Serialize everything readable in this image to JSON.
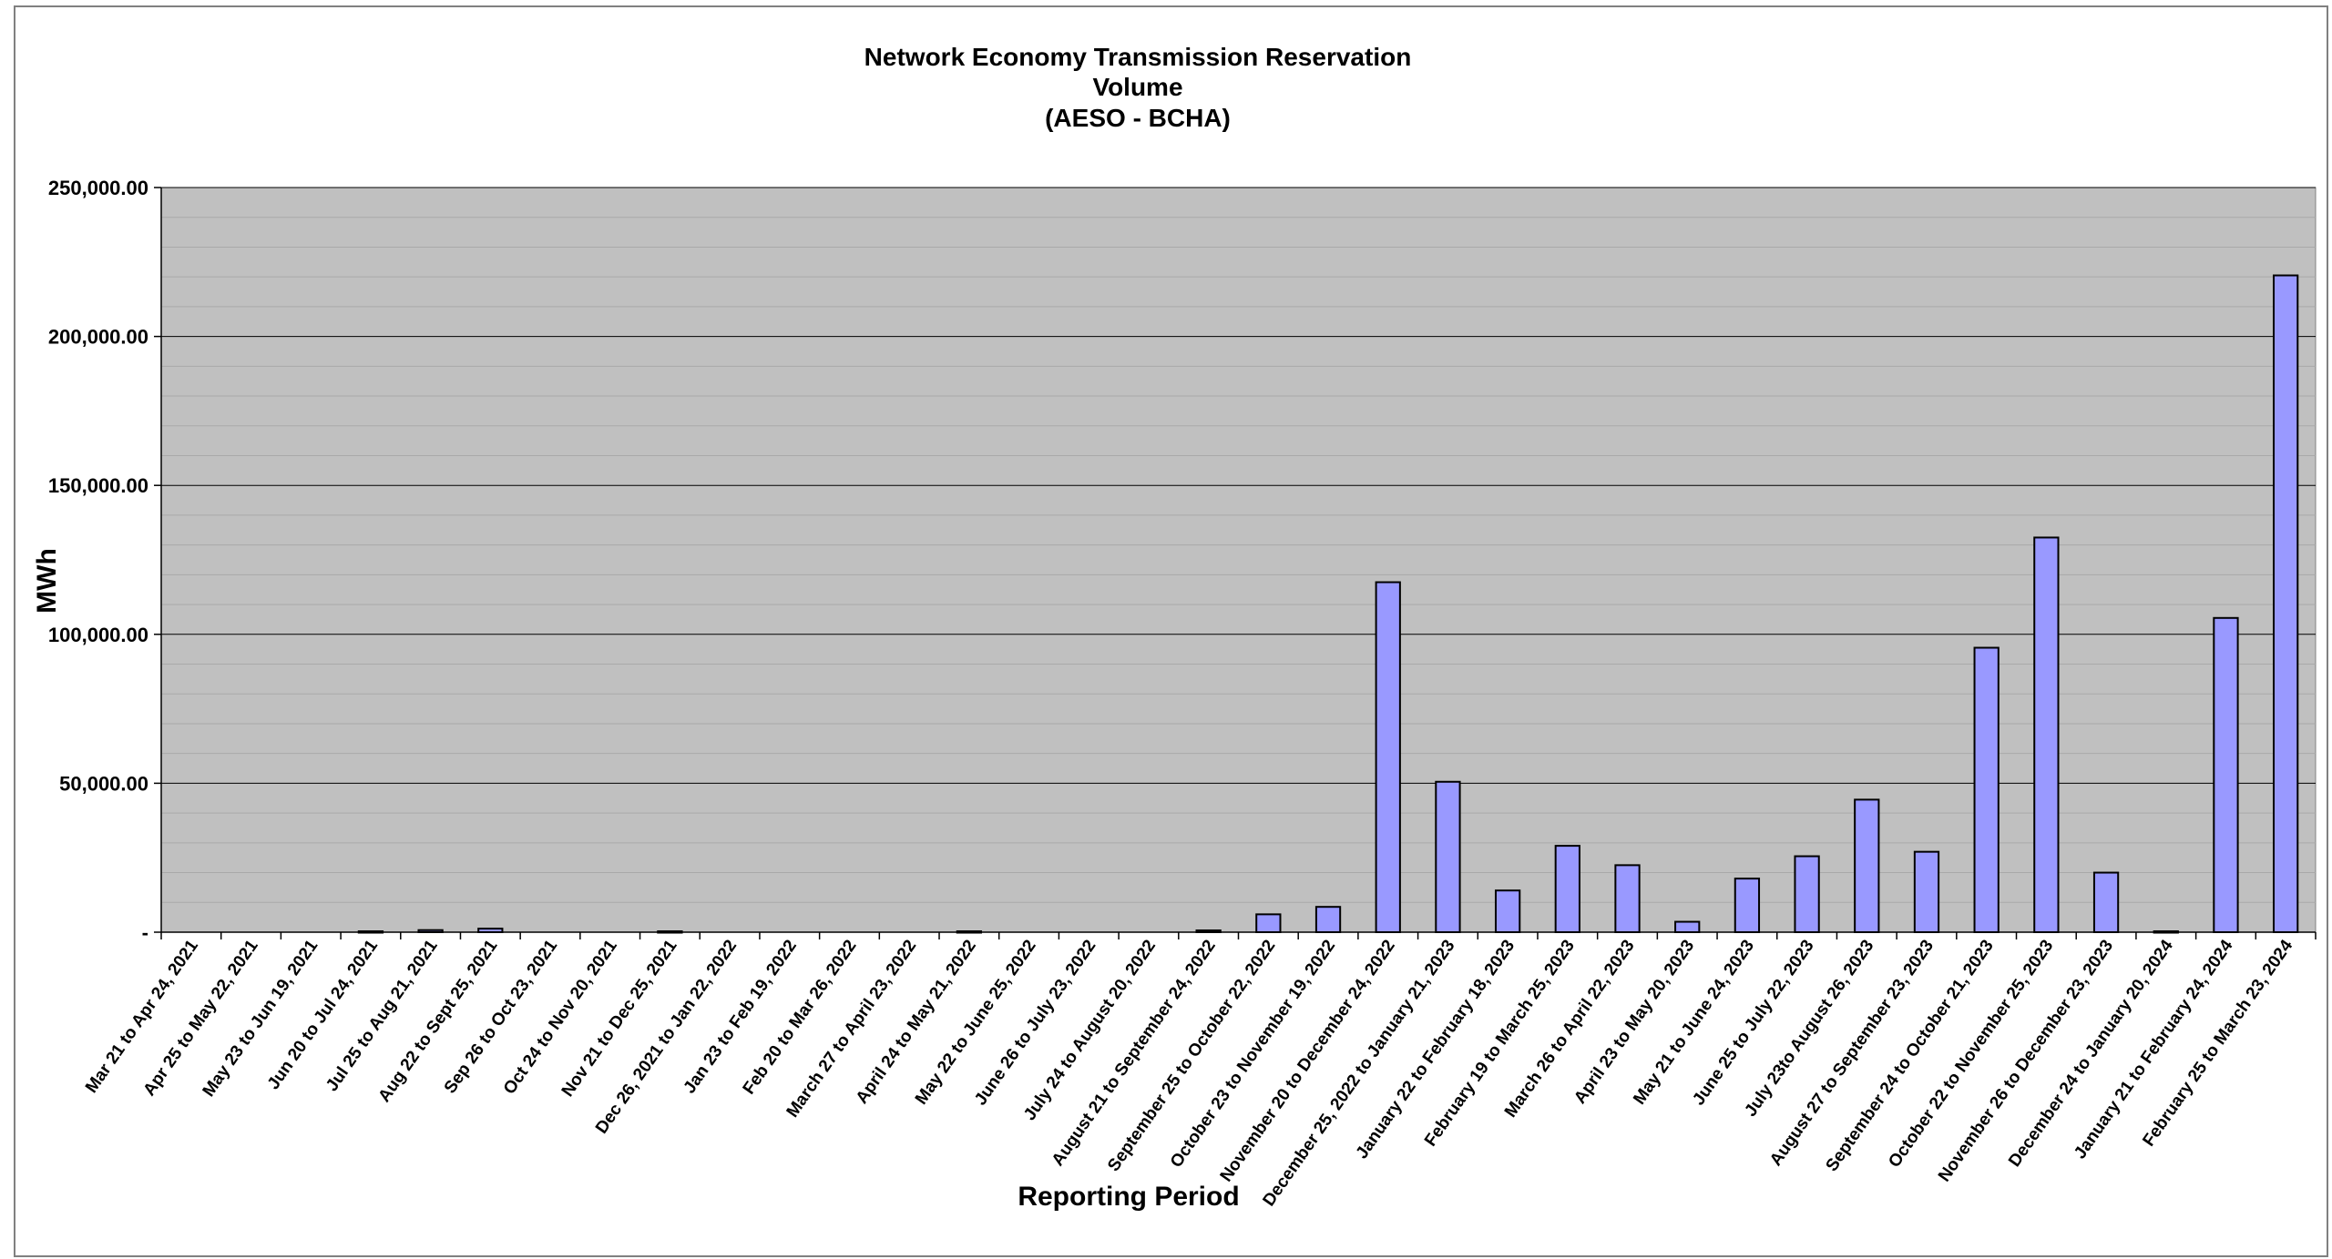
{
  "chart_data": {
    "type": "bar",
    "title_lines": [
      "Network Economy Transmission Reservation",
      "Volume",
      "(AESO - BCHA)"
    ],
    "xlabel": "Reporting Period",
    "ylabel": "MWh",
    "ylim": [
      0,
      250000
    ],
    "y_ticks": [
      0,
      50000,
      100000,
      150000,
      200000,
      250000
    ],
    "y_tick_labels": [
      "-",
      "50,000.00",
      "100,000.00",
      "150,000.00",
      "200,000.00",
      "250,000.00"
    ],
    "grid": true,
    "minor_grid_step": 10000,
    "plot_background": "#c0c0c0",
    "bar_color": "#9999ff",
    "bar_edge_color": "#000000",
    "categories": [
      "Mar 21 to Apr 24, 2021",
      "Apr 25 to May 22, 2021",
      "May 23 to Jun 19, 2021",
      "Jun 20 to Jul 24, 2021",
      "Jul 25 to Aug 21, 2021",
      "Aug 22 to Sept 25, 2021",
      "Sep 26 to Oct 23, 2021",
      "Oct 24 to Nov 20, 2021",
      "Nov 21 to Dec 25, 2021",
      "Dec 26, 2021 to Jan 22, 2022",
      "Jan 23 to Feb 19, 2022",
      "Feb 20 to Mar 26, 2022",
      "March 27 to April 23, 2022",
      "April 24 to May 21, 2022",
      "May 22 to June 25, 2022",
      "June 26 to July 23, 2022",
      "July 24 to August 20, 2022",
      "August 21 to September 24, 2022",
      "September 25 to October 22, 2022",
      "October 23 to November 19, 2022",
      "November 20 to December 24, 2022",
      "December 25, 2022 to January 21, 2023",
      "January 22 to February 18, 2023",
      "February 19 to March 25, 2023",
      "March 26 to April 22, 2023",
      "April 23 to May 20, 2023",
      "May 21 to June 24, 2023",
      "June 25 to July 22, 2023",
      "July 23to August 26, 2023",
      "August 27 to September 23, 2023",
      "September 24 to October 21, 2023",
      "October 22 to November 25, 2023",
      "November 26 to December 23, 2023",
      "December 24 to January 20, 2024",
      "January 21 to February 24, 2024",
      "February 25 to March 23, 2024"
    ],
    "values": [
      0,
      0,
      0,
      300,
      700,
      1200,
      0,
      0,
      300,
      0,
      0,
      0,
      0,
      300,
      0,
      0,
      0,
      600,
      6000,
      8500,
      117500,
      50500,
      14000,
      29000,
      22500,
      3500,
      18000,
      25500,
      44500,
      27000,
      95500,
      132500,
      20000,
      300,
      105500,
      220500
    ]
  }
}
